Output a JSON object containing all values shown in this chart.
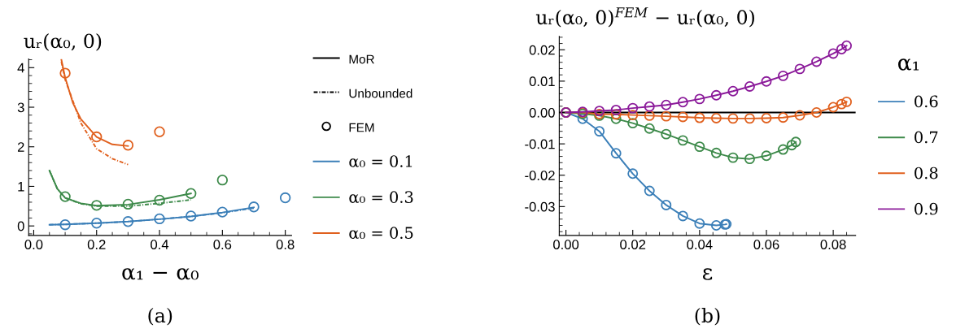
{
  "chart_data": [
    {
      "type": "line",
      "xlabel": "α₁ − α₀",
      "ylabel": "uᵣ(α₀, 0)",
      "xlim": [
        -0.016,
        0.82
      ],
      "ylim": [
        -0.24,
        4.22
      ],
      "xticks": [
        {
          "value": 0,
          "label": "0.0"
        },
        {
          "value": 0.2,
          "label": "0.2"
        },
        {
          "value": 0.4,
          "label": "0.4"
        },
        {
          "value": 0.6,
          "label": "0.6"
        },
        {
          "value": 0.8,
          "label": "0.8"
        }
      ],
      "yticks": [
        0,
        1,
        2,
        3,
        4
      ],
      "legend": "right",
      "grid": false,
      "annotations": [
        "(a)",
        "MoR",
        "Unbounded",
        "FEM"
      ],
      "series": [
        {
          "name": "α₀ = 0.1",
          "line_style": "solid",
          "color": "#3b7fb8",
          "x": [
            0.05,
            0.1,
            0.2,
            0.3,
            0.4,
            0.5,
            0.6,
            0.7
          ],
          "values": [
            0.03,
            0.04,
            0.07,
            0.11,
            0.17,
            0.24,
            0.34,
            0.47
          ]
        },
        {
          "line_style": "dashdot",
          "color": "#3b7fb8",
          "x": [
            0.05,
            0.1,
            0.2,
            0.3,
            0.4,
            0.5,
            0.6,
            0.7
          ],
          "values": [
            0.03,
            0.04,
            0.07,
            0.11,
            0.17,
            0.24,
            0.33,
            0.45
          ]
        },
        {
          "type": "scatter",
          "marker": "circle",
          "color": "#3b7fb8",
          "x": [
            0.1,
            0.2,
            0.3,
            0.4,
            0.5,
            0.6,
            0.7,
            0.8
          ],
          "values": [
            0.03,
            0.07,
            0.11,
            0.18,
            0.25,
            0.35,
            0.48,
            0.71
          ]
        },
        {
          "name": "α₀ = 0.3",
          "line_style": "solid",
          "color": "#3d8a4a",
          "x": [
            0.05,
            0.075,
            0.1,
            0.15,
            0.2,
            0.3,
            0.4,
            0.5
          ],
          "values": [
            1.4,
            0.94,
            0.71,
            0.57,
            0.51,
            0.54,
            0.66,
            0.82
          ]
        },
        {
          "line_style": "dashdot",
          "color": "#3d8a4a",
          "x": [
            0.05,
            0.075,
            0.1,
            0.15,
            0.2,
            0.3,
            0.4,
            0.5
          ],
          "values": [
            1.4,
            0.94,
            0.71,
            0.56,
            0.5,
            0.5,
            0.57,
            0.66
          ]
        },
        {
          "type": "scatter",
          "marker": "circle",
          "color": "#3d8a4a",
          "x": [
            0.1,
            0.2,
            0.3,
            0.4,
            0.5,
            0.6
          ],
          "values": [
            0.74,
            0.52,
            0.55,
            0.65,
            0.82,
            1.16
          ]
        },
        {
          "name": "α₀ = 0.5",
          "line_style": "solid",
          "color": "#e0601e",
          "x": [
            0.088,
            0.1,
            0.125,
            0.15,
            0.2,
            0.25,
            0.3
          ],
          "values": [
            4.2,
            3.75,
            3.1,
            2.7,
            2.25,
            2.06,
            2.02
          ]
        },
        {
          "line_style": "dashdot",
          "color": "#e0601e",
          "x": [
            0.088,
            0.1,
            0.15,
            0.2,
            0.25,
            0.3
          ],
          "values": [
            4.15,
            3.7,
            2.6,
            1.95,
            1.7,
            1.55
          ]
        },
        {
          "type": "scatter",
          "marker": "circle",
          "color": "#e0601e",
          "x": [
            0.1,
            0.2,
            0.3,
            0.4
          ],
          "values": [
            3.86,
            2.25,
            2.04,
            2.38
          ]
        }
      ]
    },
    {
      "type": "line",
      "xlabel": "ε",
      "ylabel": "uᵣ(α₀, 0)$^{FEM}$ − uᵣ(α₀, 0)",
      "legend_title": "α₁",
      "xlim": [
        -0.002,
        0.0867
      ],
      "ylim": [
        -0.0392,
        0.0243
      ],
      "xticks": [
        {
          "value": 0,
          "label": "0.00"
        },
        {
          "value": 0.02,
          "label": "0.02"
        },
        {
          "value": 0.04,
          "label": "0.04"
        },
        {
          "value": 0.06,
          "label": "0.06"
        },
        {
          "value": 0.08,
          "label": "0.08"
        }
      ],
      "yticks": [
        {
          "value": -0.03,
          "label": "-0.03"
        },
        {
          "value": -0.02,
          "label": "-0.02"
        },
        {
          "value": -0.01,
          "label": "-0.01"
        },
        {
          "value": 0,
          "label": "0.00"
        },
        {
          "value": 0.01,
          "label": "0.01"
        },
        {
          "value": 0.02,
          "label": "0.02"
        }
      ],
      "legend": "right",
      "grid": false,
      "ref_lines": [
        {
          "axis": "y",
          "value": 0,
          "color": "#000000"
        }
      ],
      "annotations": [
        "(b)"
      ],
      "series": [
        {
          "name": "0.6",
          "marker": "circle",
          "color": "#3b7fb8",
          "x": [
            0,
            0.005,
            0.01,
            0.015,
            0.02,
            0.025,
            0.03,
            0.035,
            0.04,
            0.045,
            0.0476,
            0.048
          ],
          "values": [
            0,
            -0.002,
            -0.006,
            -0.013,
            -0.0195,
            -0.025,
            -0.0295,
            -0.033,
            -0.0354,
            -0.036,
            -0.0357,
            -0.0356
          ]
        },
        {
          "name": "0.7",
          "marker": "circle",
          "color": "#3d8a4a",
          "x": [
            0,
            0.005,
            0.01,
            0.015,
            0.02,
            0.025,
            0.03,
            0.035,
            0.04,
            0.045,
            0.05,
            0.055,
            0.06,
            0.065,
            0.0676,
            0.0688
          ],
          "values": [
            0,
            -0.0004,
            -0.001,
            -0.002,
            -0.0034,
            -0.0051,
            -0.0069,
            -0.0089,
            -0.0109,
            -0.0129,
            -0.0144,
            -0.0148,
            -0.0138,
            -0.0118,
            -0.0104,
            -0.0094
          ]
        },
        {
          "name": "0.8",
          "marker": "circle",
          "color": "#e0601e",
          "x": [
            0,
            0.005,
            0.01,
            0.015,
            0.02,
            0.025,
            0.03,
            0.035,
            0.04,
            0.045,
            0.05,
            0.055,
            0.06,
            0.065,
            0.07,
            0.075,
            0.08,
            0.0825,
            0.084
          ],
          "values": [
            0,
            0,
            -0.0005,
            -0.0006,
            -0.0008,
            -0.001,
            -0.0012,
            -0.0014,
            -0.0017,
            -0.0018,
            -0.0019,
            -0.0019,
            -0.0018,
            -0.0016,
            -0.0009,
            0,
            0.0017,
            0.0027,
            0.0034
          ]
        },
        {
          "name": "0.9",
          "marker": "circle",
          "color": "#8b1a9a",
          "x": [
            0,
            0.005,
            0.01,
            0.015,
            0.02,
            0.025,
            0.03,
            0.035,
            0.04,
            0.045,
            0.05,
            0.055,
            0.06,
            0.065,
            0.07,
            0.075,
            0.08,
            0.0825,
            0.084
          ],
          "values": [
            0,
            0.0002,
            0.0005,
            0.0008,
            0.0014,
            0.0019,
            0.0024,
            0.0033,
            0.0043,
            0.0055,
            0.0068,
            0.0083,
            0.0099,
            0.0117,
            0.0139,
            0.0162,
            0.0188,
            0.0202,
            0.0213
          ]
        }
      ]
    }
  ]
}
